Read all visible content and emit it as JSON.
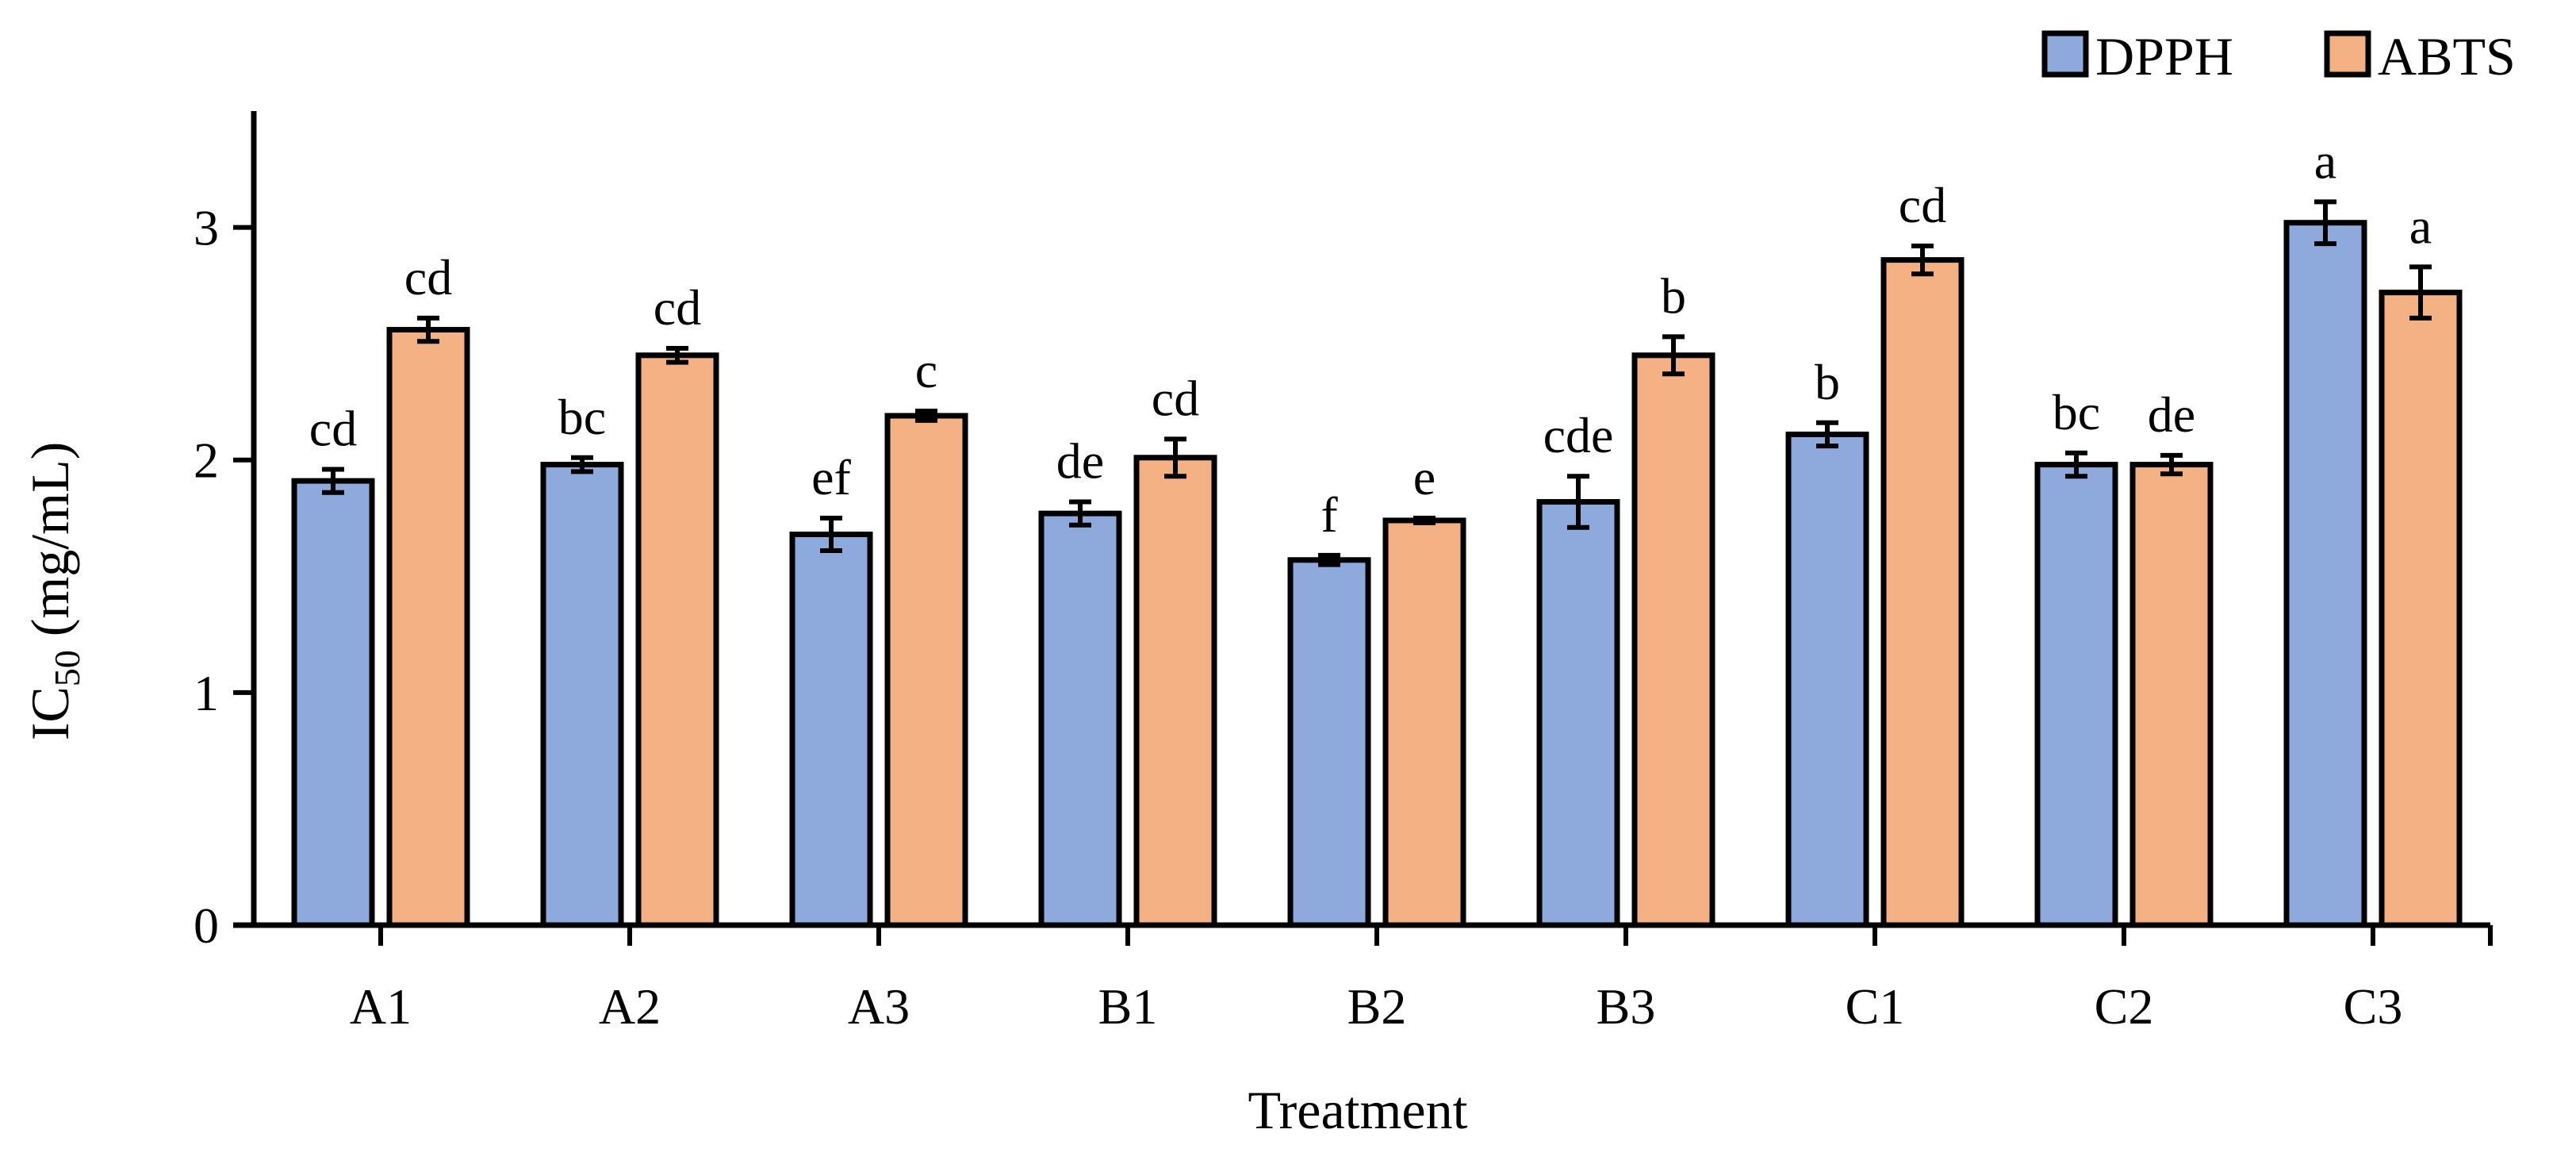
{
  "chart_data": {
    "type": "bar",
    "title": "",
    "xlabel": "Treatment",
    "ylabel": {
      "main": "IC",
      "subscript": "50",
      "unit": " (mg/mL)"
    },
    "ylim": [
      0,
      3.5
    ],
    "yticks": [
      "0",
      "1",
      "2",
      "3"
    ],
    "grid": false,
    "legend_position": "top-right",
    "categories": [
      "A1",
      "A2",
      "A3",
      "B1",
      "B2",
      "B3",
      "C1",
      "C2",
      "C3"
    ],
    "series": [
      {
        "name": "DPPH",
        "color": "#8EA9DB",
        "values": [
          1.91,
          1.98,
          1.68,
          1.77,
          1.57,
          1.82,
          2.11,
          1.98,
          3.02
        ],
        "errors": [
          0.05,
          0.03,
          0.07,
          0.05,
          0.02,
          0.11,
          0.05,
          0.05,
          0.09
        ],
        "labels": [
          "cd",
          "bc",
          "ef",
          "de",
          "f",
          "cde",
          "b",
          "bc",
          "a"
        ]
      },
      {
        "name": "ABTS",
        "color": "#F4B183",
        "values": [
          2.56,
          2.45,
          2.19,
          2.01,
          1.74,
          2.45,
          2.86,
          1.98,
          2.72
        ],
        "errors": [
          0.05,
          0.03,
          0.02,
          0.08,
          0.01,
          0.08,
          0.06,
          0.04,
          0.11
        ],
        "labels": [
          "cd",
          "cd",
          "c",
          "cd",
          "e",
          "b",
          "cd",
          "de",
          "a"
        ]
      }
    ]
  }
}
